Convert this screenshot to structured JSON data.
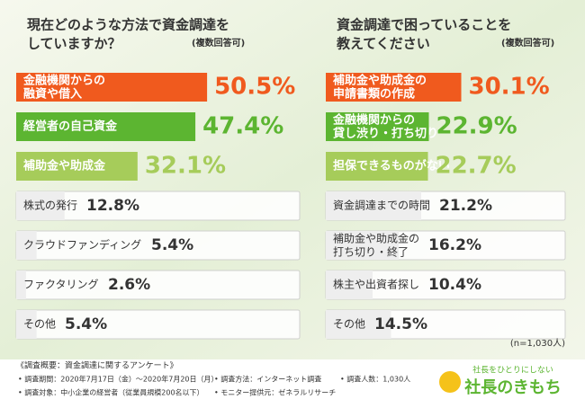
{
  "chart_data": [
    {
      "type": "bar",
      "title": "現在どのような方法で資金調達を\nしていますか？",
      "subtitle": "(複数回答可)",
      "categories": [
        "金融機関からの\n融資や借入",
        "経営者の自己資金",
        "補助金や助成金",
        "株式の発行",
        "クラウドファンディング",
        "ファクタリング",
        "その他"
      ],
      "values": [
        50.5,
        47.4,
        32.1,
        12.8,
        5.4,
        2.6,
        5.4
      ],
      "value_labels": [
        "50.5%",
        "47.4%",
        "32.1%",
        "12.8%",
        "5.4%",
        "2.6%",
        "5.4%"
      ],
      "colors": [
        "#f05a1e",
        "#5cb531",
        "#a6cc5a",
        "#bbbbbb",
        "#bbbbbb",
        "#bbbbbb",
        "#bbbbbb"
      ]
    },
    {
      "type": "bar",
      "title": "資金調達で困っていることを\n教えてください",
      "subtitle": "(複数回答可)",
      "categories": [
        "補助金や助成金の\n申請書類の作成",
        "金融機関からの\n貸し渋り・打ち切り",
        "担保できるものがない",
        "資金調達までの時間",
        "補助金や助成金の\n打ち切り・終了",
        "株主や出資者探し",
        "その他"
      ],
      "values": [
        30.1,
        22.9,
        22.7,
        21.2,
        16.2,
        10.4,
        14.5
      ],
      "value_labels": [
        "30.1%",
        "22.9%",
        "22.7%",
        "21.2%",
        "16.2%",
        "10.4%",
        "14.5%"
      ],
      "colors": [
        "#f05a1e",
        "#5cb531",
        "#a6cc5a",
        "#bbbbbb",
        "#bbbbbb",
        "#bbbbbb",
        "#bbbbbb"
      ],
      "note": "(n=1,030人)"
    }
  ],
  "footer": {
    "heading": "《調査概要：資金調達に関するアンケート》",
    "items": [
      "• 調査期間：2020年7月17日（金）〜2020年7月20日（月）",
      "• 調査方法：インターネット調査",
      "• 調査人数：1,030人",
      "• 調査対象：中小企業の経営者（従業員規模200名以下）",
      "• モニター提供元：ゼネラルリサーチ"
    ]
  },
  "logo": {
    "tagline": "社長をひとりにしない",
    "name": "社長のきもち"
  }
}
